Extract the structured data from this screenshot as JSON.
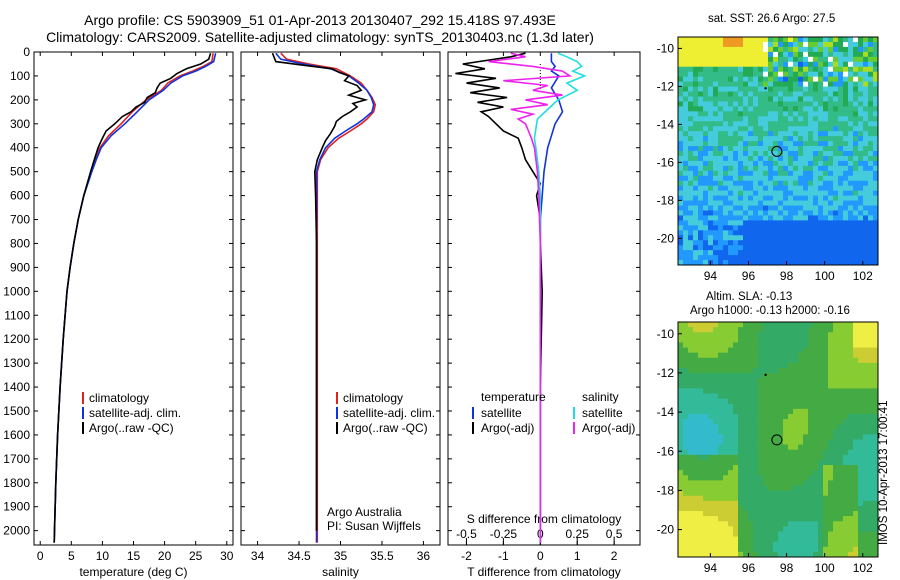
{
  "header": {
    "line1": "Argo profile: CS 5903909_51 01-Apr-2013 20130407_292 15.418S 97.493E",
    "line2": "Climatology: CARS2009. Satellite-adjusted climatology: synTS_20130403.nc (1.3d later)"
  },
  "colors": {
    "climatology": "#dd2222",
    "satellite": "#1133dd",
    "argo": "#000000",
    "satellite_s": "#22dddd",
    "argo_s": "#ee22ee"
  },
  "chart_data": [
    {
      "type": "line",
      "id": "temperature",
      "xlabel": "temperature (deg C)",
      "xlim": [
        -1,
        31
      ],
      "xticks": [
        0,
        5,
        10,
        15,
        20,
        25,
        30
      ],
      "ylim": [
        2060,
        0
      ],
      "yticks": [
        0,
        100,
        200,
        300,
        400,
        500,
        600,
        700,
        800,
        900,
        1000,
        1100,
        1200,
        1300,
        1400,
        1500,
        1600,
        1700,
        1800,
        1900,
        2000
      ],
      "legend": [
        "climatology",
        "satellite-adj. clim.",
        "Argo(..raw -QC)"
      ],
      "series": [
        {
          "name": "climatology",
          "depth": [
            5,
            40,
            60,
            80,
            100,
            130,
            160,
            200,
            250,
            300,
            350,
            400,
            450,
            500,
            600,
            700,
            800,
            900,
            1000,
            1200,
            1400,
            1600,
            1800,
            2000,
            2050
          ],
          "values": [
            27.8,
            27.6,
            26.2,
            24.5,
            22.5,
            20.5,
            19.5,
            17.0,
            14.8,
            13.0,
            11.0,
            9.6,
            8.9,
            8.2,
            7.0,
            6.1,
            5.4,
            4.8,
            4.3,
            3.7,
            3.2,
            2.8,
            2.5,
            2.3,
            2.25
          ]
        },
        {
          "name": "satellite-adj. clim.",
          "depth": [
            5,
            40,
            60,
            80,
            100,
            130,
            160,
            200,
            250,
            300,
            350,
            400,
            450,
            500,
            600,
            700,
            800,
            900,
            1000,
            1200,
            1400,
            1600,
            1800,
            2000,
            2050
          ],
          "values": [
            28.2,
            27.9,
            26.6,
            25.0,
            22.9,
            21.0,
            19.8,
            17.5,
            15.6,
            13.6,
            11.4,
            9.8,
            9.0,
            8.3,
            7.0,
            6.1,
            5.4,
            4.8,
            4.3,
            3.7,
            3.2,
            2.8,
            2.5,
            2.3,
            2.25
          ]
        },
        {
          "name": "Argo(..raw -QC)",
          "depth": [
            5,
            30,
            50,
            70,
            90,
            110,
            130,
            150,
            170,
            190,
            210,
            230,
            250,
            270,
            300,
            330,
            360,
            400,
            450,
            500,
            600,
            700,
            800,
            900,
            1000,
            1200,
            1400,
            1600,
            1800,
            2000,
            2050
          ],
          "values": [
            27.4,
            27.1,
            25.8,
            23.5,
            22.0,
            21.0,
            19.3,
            18.8,
            18.5,
            17.2,
            16.8,
            15.4,
            14.6,
            13.2,
            12.0,
            10.6,
            10.0,
            9.3,
            8.7,
            8.1,
            7.0,
            6.1,
            5.4,
            4.8,
            4.3,
            3.7,
            3.2,
            2.8,
            2.5,
            2.3,
            2.25
          ]
        }
      ]
    },
    {
      "type": "line",
      "id": "salinity",
      "xlabel": "salinity",
      "xlim": [
        33.8,
        36.2
      ],
      "xticks": [
        34,
        34.5,
        35,
        35.5,
        36
      ],
      "ylim": [
        2060,
        0
      ],
      "legend": [
        "climatology",
        "satellite-adj. clim.",
        "Argo(..raw -QC)"
      ],
      "annotation": [
        "Argo Australia",
        "PI: Susan Wijffels"
      ],
      "series": [
        {
          "name": "climatology",
          "depth": [
            5,
            30,
            50,
            70,
            100,
            130,
            160,
            190,
            220,
            250,
            280,
            300,
            330,
            360,
            400,
            450,
            500,
            600,
            800,
            1000,
            1400,
            1800,
            2050
          ],
          "values": [
            34.28,
            34.35,
            34.62,
            34.95,
            35.12,
            35.25,
            35.32,
            35.38,
            35.42,
            35.4,
            35.32,
            35.25,
            35.12,
            34.98,
            34.85,
            34.76,
            34.72,
            34.72,
            34.72,
            34.72,
            34.72,
            34.72,
            34.72
          ]
        },
        {
          "name": "satellite-adj. clim.",
          "depth": [
            5,
            30,
            50,
            70,
            100,
            130,
            160,
            190,
            220,
            250,
            280,
            300,
            330,
            360,
            400,
            450,
            500,
            600,
            800,
            1000,
            1400,
            1800,
            2050
          ],
          "values": [
            34.22,
            34.28,
            34.55,
            34.88,
            35.1,
            35.22,
            35.32,
            35.37,
            35.4,
            35.38,
            35.28,
            35.2,
            35.06,
            34.93,
            34.82,
            34.75,
            34.71,
            34.71,
            34.71,
            34.71,
            34.71,
            34.71,
            34.71
          ]
        },
        {
          "name": "Argo(..raw -QC)",
          "depth": [
            5,
            40,
            55,
            70,
            85,
            100,
            120,
            140,
            160,
            180,
            200,
            215,
            230,
            250,
            270,
            290,
            310,
            340,
            370,
            400,
            450,
            500,
            600,
            800,
            1000,
            1400,
            1800,
            2000
          ],
          "values": [
            34.18,
            34.22,
            34.55,
            34.9,
            34.98,
            35.1,
            35.05,
            35.2,
            35.25,
            35.1,
            35.3,
            35.15,
            35.2,
            35.12,
            35.02,
            34.95,
            34.93,
            34.88,
            34.82,
            34.78,
            34.72,
            34.69,
            34.7,
            34.71,
            34.71,
            34.71,
            34.71,
            34.71
          ]
        }
      ]
    },
    {
      "type": "line",
      "id": "difference",
      "xlabel": "T difference from climatology",
      "xlabel_top": "S difference from climatology",
      "xlim": [
        -2.5,
        2.7
      ],
      "xticks": [
        -2,
        -1,
        0,
        1,
        2
      ],
      "top_ticks": [
        -0.5,
        -0.25,
        0,
        0.25,
        0.5
      ],
      "top_tick_labels": [
        "-0.5",
        "-0.25",
        "0",
        "0.25",
        "0.5"
      ],
      "ylim": [
        2060,
        0
      ],
      "legend_left_title": "temperature",
      "legend_right_title": "salinity",
      "legend_left": [
        "satellite",
        "Argo(-adj)"
      ],
      "legend_right": [
        "satellite",
        "Argo(-adj)"
      ],
      "series": [
        {
          "name": "T satellite",
          "depth": [
            5,
            40,
            60,
            80,
            100,
            150,
            200,
            250,
            300,
            350,
            400,
            500,
            600,
            700,
            800,
            1000,
            1400,
            1800,
            2050
          ],
          "values": [
            0.3,
            0.3,
            0.4,
            0.3,
            0.5,
            0.3,
            0.5,
            0.6,
            0.4,
            0.3,
            0.2,
            0.1,
            0.05,
            0.0,
            0.0,
            0.0,
            0.0,
            0.0,
            0.0
          ]
        },
        {
          "name": "T argo",
          "depth": [
            5,
            20,
            50,
            70,
            90,
            110,
            130,
            150,
            170,
            190,
            210,
            230,
            250,
            270,
            300,
            330,
            360,
            400,
            450,
            500,
            550,
            600,
            700,
            800,
            1000,
            1400,
            1800,
            2050
          ],
          "values": [
            -0.4,
            -0.8,
            -2.1,
            -1.5,
            -2.3,
            -1.2,
            -2.0,
            -1.1,
            -1.9,
            -0.9,
            -1.7,
            -1.0,
            -1.6,
            -1.4,
            -1.2,
            -1.0,
            -0.6,
            -0.5,
            -0.4,
            -0.2,
            0.0,
            -0.1,
            0.0,
            0.0,
            0.05,
            0.0,
            0.0,
            0.0
          ]
        },
        {
          "name": "S satellite",
          "depth": [
            5,
            20,
            40,
            60,
            80,
            100,
            130,
            160,
            200,
            240,
            280,
            320,
            360,
            400,
            450,
            500,
            600,
            800,
            1000,
            1400,
            1800,
            2050
          ],
          "values": [
            0.12,
            0.18,
            0.25,
            0.28,
            0.22,
            0.3,
            0.18,
            0.25,
            0.12,
            0.05,
            -0.02,
            -0.03,
            -0.04,
            -0.03,
            -0.02,
            -0.01,
            0.0,
            0.0,
            0.0,
            0.0,
            0.0,
            0.0
          ]
        },
        {
          "name": "S argo",
          "depth": [
            5,
            20,
            40,
            60,
            80,
            100,
            120,
            140,
            160,
            180,
            200,
            220,
            240,
            260,
            280,
            300,
            330,
            360,
            400,
            450,
            500,
            600,
            800,
            1000,
            1400,
            1800,
            2050
          ],
          "values": [
            -0.2,
            -0.1,
            -0.35,
            -0.05,
            0.15,
            0.2,
            -0.25,
            0.05,
            -0.05,
            0.15,
            -0.1,
            0.05,
            -0.2,
            -0.05,
            -0.15,
            -0.1,
            -0.08,
            -0.06,
            -0.04,
            -0.03,
            -0.02,
            -0.01,
            0.0,
            0.0,
            0.0,
            0.0,
            0.0
          ]
        }
      ]
    },
    {
      "type": "heatmap",
      "id": "sst-map",
      "title": "sat. SST: 26.6  Argo: 27.5",
      "xlim": [
        92.3,
        102.8
      ],
      "ylim": [
        -21.4,
        -9.4
      ],
      "xticks": [
        94,
        96,
        98,
        100,
        102
      ],
      "yticks": [
        -10,
        -12,
        -14,
        -16,
        -18,
        -20
      ],
      "argo_position": [
        97.49,
        -15.42
      ],
      "prev_positions": [
        [
          96.9,
          -12.1
        ]
      ]
    },
    {
      "type": "heatmap",
      "id": "sla-map",
      "title": "Altim. SLA: -0.13",
      "subtitle": "Argo h1000: -0.13  h2000: -0.16",
      "xlim": [
        92.3,
        102.8
      ],
      "ylim": [
        -21.4,
        -9.4
      ],
      "xticks": [
        94,
        96,
        98,
        100,
        102
      ],
      "yticks": [
        -10,
        -12,
        -14,
        -16,
        -18,
        -20
      ],
      "argo_position": [
        97.49,
        -15.42
      ],
      "prev_positions": [
        [
          96.9,
          -12.1
        ]
      ]
    }
  ],
  "stamp": "IMOS 10-Apr-2013 17:00:41"
}
